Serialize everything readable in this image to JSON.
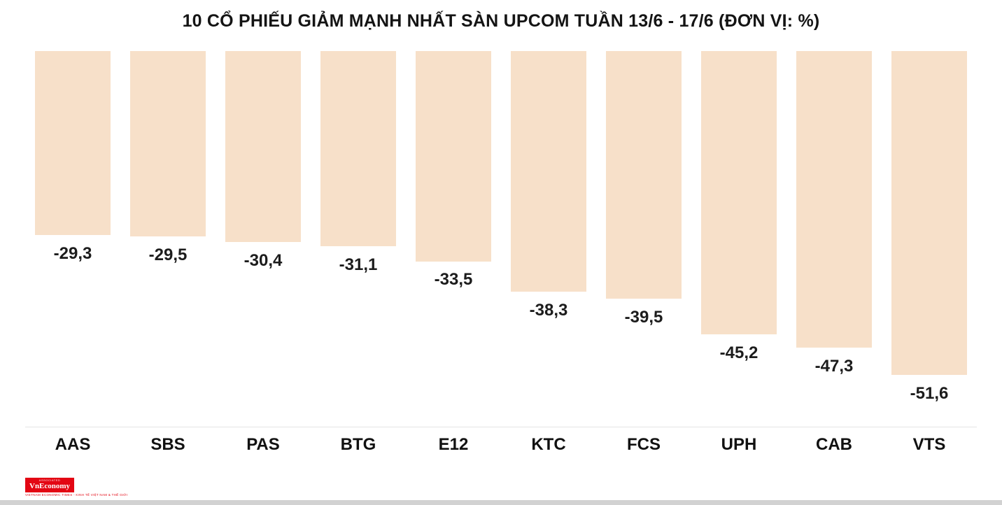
{
  "title": "10 CỔ PHIẾU GIẢM MẠNH NHẤT SÀN UPCOM TUẦN 13/6 - 17/6 (ĐƠN VỊ: %)",
  "chart_data": {
    "type": "bar",
    "title": "10 CỔ PHIẾU GIẢM MẠNH NHẤT SÀN UPCOM TUẦN 13/6 - 17/6 (ĐƠN VỊ: %)",
    "unit": "%",
    "categories": [
      "AAS",
      "SBS",
      "PAS",
      "BTG",
      "E12",
      "KTC",
      "FCS",
      "UPH",
      "CAB",
      "VTS"
    ],
    "values": [
      -29.3,
      -29.5,
      -30.4,
      -31.1,
      -33.5,
      -38.3,
      -39.5,
      -45.2,
      -47.3,
      -51.6
    ],
    "value_labels": [
      "-29,3",
      "-29,5",
      "-30,4",
      "-31,1",
      "-33,5",
      "-38,3",
      "-39,5",
      "-45,2",
      "-47,3",
      "-51,6"
    ],
    "bar_color": "#f7e0c9",
    "orientation": "bars-hang-from-top",
    "ylim": [
      0,
      -55
    ],
    "grid": false,
    "legend": "none"
  },
  "branding": {
    "logo_text": "VnEconomy",
    "logo_top_text": "ASSOCIATED",
    "logo_sub_text": "VIETNAM ECONOMIC TIMES - KINH TẾ VIỆT NAM & THẾ GIỚI",
    "logo_bg": "#e30613"
  }
}
